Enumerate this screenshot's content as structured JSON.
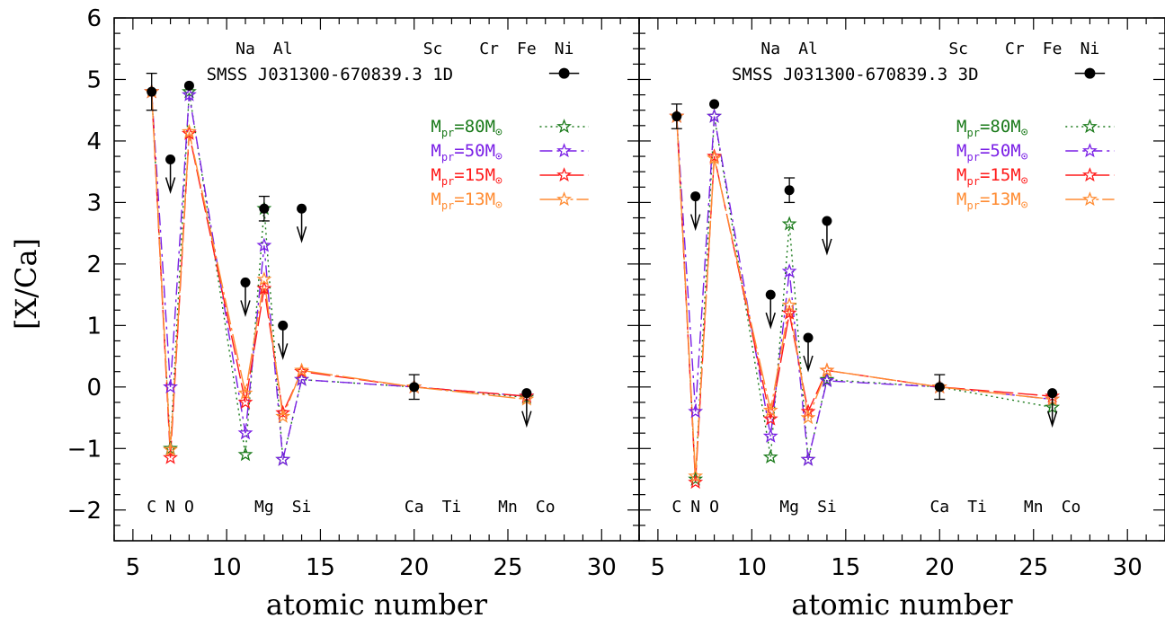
{
  "chart_data": {
    "type": "line",
    "ylabel": "[X/Ca]",
    "xlabel": "atomic number",
    "xlim": [
      4,
      32
    ],
    "ylim": [
      -2.5,
      6
    ],
    "x_ticks": [
      5,
      10,
      15,
      20,
      25,
      30
    ],
    "y_ticks": [
      -2,
      -1,
      0,
      1,
      2,
      3,
      4,
      5,
      6
    ],
    "element_labels_top": [
      {
        "text": "Na",
        "x": 11
      },
      {
        "text": "Al",
        "x": 13
      },
      {
        "text": "Sc",
        "x": 21
      },
      {
        "text": "Cr",
        "x": 24
      },
      {
        "text": "Fe",
        "x": 26
      },
      {
        "text": "Ni",
        "x": 28
      }
    ],
    "element_labels_bottom": [
      {
        "text": "C",
        "x": 6
      },
      {
        "text": "N",
        "x": 7
      },
      {
        "text": "O",
        "x": 8
      },
      {
        "text": "Mg",
        "x": 12
      },
      {
        "text": "Si",
        "x": 14
      },
      {
        "text": "Ca",
        "x": 20
      },
      {
        "text": "Ti",
        "x": 22
      },
      {
        "text": "Mn",
        "x": 25
      },
      {
        "text": "Co",
        "x": 27
      }
    ],
    "legend_model_labels": [
      {
        "main": "M",
        "sub": "pr",
        "mid": "=80M",
        "sun": "⊙"
      },
      {
        "main": "M",
        "sub": "pr",
        "mid": "=50M",
        "sun": "⊙"
      },
      {
        "main": "M",
        "sub": "pr",
        "mid": "=15M",
        "sun": "⊙"
      },
      {
        "main": "M",
        "sub": "pr",
        "mid": "=13M",
        "sun": "⊙"
      }
    ],
    "colors": {
      "obs": "#000000",
      "m80": "#1a7a1a",
      "m50": "#7a1fe6",
      "m15": "#ff1a1a",
      "m13": "#ff8c33"
    },
    "panels": [
      {
        "title": "SMSS J031300-670839.3 1D",
        "observations": [
          {
            "x": 6,
            "y": 4.8,
            "err": 0.3
          },
          {
            "x": 7,
            "y": 3.7,
            "upper": true
          },
          {
            "x": 8,
            "y": 4.9
          },
          {
            "x": 11,
            "y": 1.7,
            "upper": true
          },
          {
            "x": 12,
            "y": 2.9,
            "err": 0.2
          },
          {
            "x": 13,
            "y": 1.0,
            "upper": true
          },
          {
            "x": 14,
            "y": 2.9,
            "upper": true
          },
          {
            "x": 20,
            "y": 0.0,
            "err": 0.2
          },
          {
            "x": 26,
            "y": -0.1,
            "upper": true
          }
        ],
        "series": [
          {
            "key": "m80",
            "dash": "2,4",
            "x": [
              6,
              7,
              8,
              11,
              12,
              13,
              14,
              20,
              26
            ],
            "y": [
              4.8,
              -1.0,
              4.8,
              -1.1,
              2.9,
              -1.18,
              0.12,
              0.0,
              -0.17
            ]
          },
          {
            "key": "m50",
            "dash": "14,5,3,5",
            "x": [
              6,
              7,
              8,
              11,
              12,
              13,
              14,
              20,
              26
            ],
            "y": [
              4.8,
              0.0,
              4.75,
              -0.75,
              2.3,
              -1.18,
              0.12,
              0.0,
              -0.15
            ]
          },
          {
            "key": "m15",
            "dash": "22,5",
            "x": [
              6,
              7,
              8,
              11,
              12,
              13,
              14,
              20,
              26
            ],
            "y": [
              4.8,
              -1.15,
              4.12,
              -0.25,
              1.6,
              -0.42,
              0.25,
              0.0,
              -0.15
            ]
          },
          {
            "key": "m13",
            "dash": "30,4,3,4",
            "x": [
              6,
              7,
              8,
              11,
              12,
              13,
              14,
              20,
              26
            ],
            "y": [
              4.8,
              -1.02,
              4.15,
              -0.1,
              1.75,
              -0.48,
              0.27,
              0.0,
              -0.2
            ]
          }
        ]
      },
      {
        "title": "SMSS J031300-670839.3 3D",
        "observations": [
          {
            "x": 6,
            "y": 4.4,
            "err": 0.2
          },
          {
            "x": 7,
            "y": 3.1,
            "upper": true
          },
          {
            "x": 8,
            "y": 4.6
          },
          {
            "x": 11,
            "y": 1.5,
            "upper": true
          },
          {
            "x": 12,
            "y": 3.2,
            "err": 0.2
          },
          {
            "x": 13,
            "y": 0.8,
            "upper": true
          },
          {
            "x": 14,
            "y": 2.7,
            "upper": true
          },
          {
            "x": 20,
            "y": 0.0,
            "err": 0.2
          },
          {
            "x": 26,
            "y": -0.1,
            "upper": true
          }
        ],
        "series": [
          {
            "key": "m80",
            "dash": "2,4",
            "x": [
              6,
              7,
              8,
              11,
              12,
              13,
              14,
              20,
              26
            ],
            "y": [
              4.4,
              -1.5,
              4.4,
              -1.14,
              2.65,
              -1.18,
              0.12,
              0.0,
              -0.33
            ]
          },
          {
            "key": "m50",
            "dash": "14,5,3,5",
            "x": [
              6,
              7,
              8,
              11,
              12,
              13,
              14,
              20,
              26
            ],
            "y": [
              4.4,
              -0.4,
              4.4,
              -0.8,
              1.88,
              -1.18,
              0.1,
              0.0,
              -0.2
            ]
          },
          {
            "key": "m15",
            "dash": "22,5",
            "x": [
              6,
              7,
              8,
              11,
              12,
              13,
              14,
              20,
              26
            ],
            "y": [
              4.4,
              -1.55,
              3.75,
              -0.52,
              1.2,
              -0.4,
              0.27,
              0.0,
              -0.15
            ]
          },
          {
            "key": "m13",
            "dash": "30,4,3,4",
            "x": [
              6,
              7,
              8,
              11,
              12,
              13,
              14,
              20,
              26
            ],
            "y": [
              4.4,
              -1.45,
              3.72,
              -0.38,
              1.33,
              -0.5,
              0.27,
              0.0,
              -0.2
            ]
          }
        ]
      }
    ]
  }
}
